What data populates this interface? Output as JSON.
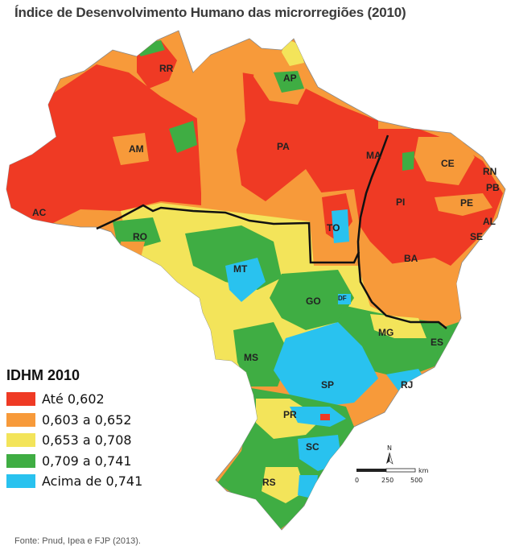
{
  "title": "Índice de Desenvolvimento Humano das microrregiões (2010)",
  "source": "Fonte: Pnud, Ipea e FJP (2013).",
  "legend": {
    "title": "IDHM 2010",
    "items": [
      {
        "label": "Até 0,602",
        "color": "#ef3a24"
      },
      {
        "label": "0,603 a 0,652",
        "color": "#f79a3a"
      },
      {
        "label": "0,653 a 0,708",
        "color": "#f3e45a"
      },
      {
        "label": "0,709 a 0,741",
        "color": "#3fad43"
      },
      {
        "label": "Acima de 0,741",
        "color": "#29c2ef"
      }
    ]
  },
  "states": [
    "RR",
    "AP",
    "AM",
    "PA",
    "MA",
    "CE",
    "RN",
    "PB",
    "PI",
    "PE",
    "AL",
    "SE",
    "AC",
    "RO",
    "TO",
    "BA",
    "MT",
    "GO",
    "DF",
    "MG",
    "ES",
    "MS",
    "SP",
    "RJ",
    "PR",
    "SC",
    "RS"
  ],
  "scale": {
    "north": "N",
    "ticks": [
      "0",
      "250",
      "500"
    ],
    "unit": "km"
  }
}
